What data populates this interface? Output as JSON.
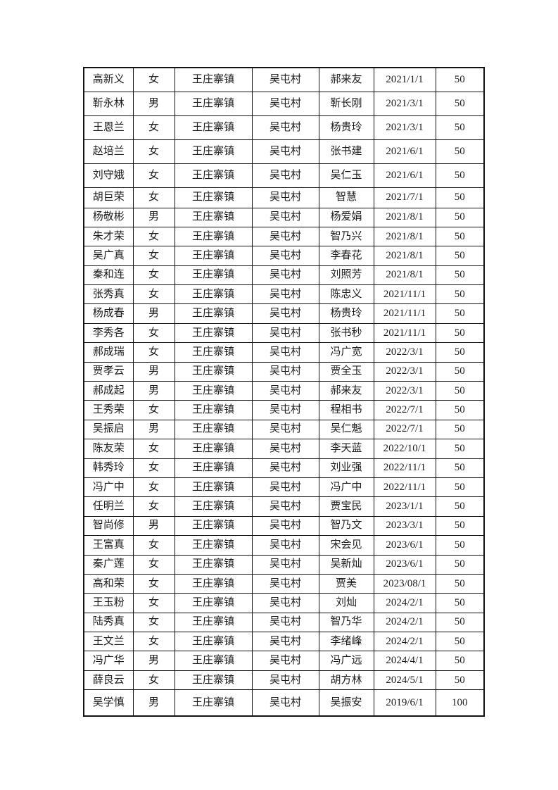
{
  "page": {
    "background_color": "#ffffff",
    "border_color": "#111111",
    "text_color": "#1c1c1c"
  },
  "table": {
    "column_keys": [
      "name",
      "gender",
      "town",
      "village",
      "contact",
      "date",
      "amount"
    ],
    "rows": [
      [
        "高新义",
        "女",
        "王庄寨镇",
        "吴屯村",
        "郝来友",
        "2021/1/1",
        "50"
      ],
      [
        "靳永林",
        "男",
        "王庄寨镇",
        "吴屯村",
        "靳长刚",
        "2021/3/1",
        "50"
      ],
      [
        "王恩兰",
        "女",
        "王庄寨镇",
        "吴屯村",
        "杨贵玲",
        "2021/3/1",
        "50"
      ],
      [
        "赵培兰",
        "女",
        "王庄寨镇",
        "吴屯村",
        "张书建",
        "2021/6/1",
        "50"
      ],
      [
        "刘守娥",
        "女",
        "王庄寨镇",
        "吴屯村",
        "吴仁玉",
        "2021/6/1",
        "50"
      ],
      [
        "胡巨荣",
        "女",
        "王庄寨镇",
        "吴屯村",
        "智慧",
        "2021/7/1",
        "50"
      ],
      [
        "杨敬彬",
        "男",
        "王庄寨镇",
        "吴屯村",
        "杨爱娟",
        "2021/8/1",
        "50"
      ],
      [
        "朱才荣",
        "女",
        "王庄寨镇",
        "吴屯村",
        "智乃兴",
        "2021/8/1",
        "50"
      ],
      [
        "吴广真",
        "女",
        "王庄寨镇",
        "吴屯村",
        "李春花",
        "2021/8/1",
        "50"
      ],
      [
        "秦和连",
        "女",
        "王庄寨镇",
        "吴屯村",
        "刘照芳",
        "2021/8/1",
        "50"
      ],
      [
        "张秀真",
        "女",
        "王庄寨镇",
        "吴屯村",
        "陈忠义",
        "2021/11/1",
        "50"
      ],
      [
        "杨成春",
        "男",
        "王庄寨镇",
        "吴屯村",
        "杨贵玲",
        "2021/11/1",
        "50"
      ],
      [
        "李秀各",
        "女",
        "王庄寨镇",
        "吴屯村",
        "张书秒",
        "2021/11/1",
        "50"
      ],
      [
        "郝成瑞",
        "女",
        "王庄寨镇",
        "吴屯村",
        "冯广宽",
        "2022/3/1",
        "50"
      ],
      [
        "贾孝云",
        "男",
        "王庄寨镇",
        "吴屯村",
        "贾全玉",
        "2022/3/1",
        "50"
      ],
      [
        "郝成起",
        "男",
        "王庄寨镇",
        "吴屯村",
        "郝来友",
        "2022/3/1",
        "50"
      ],
      [
        "王秀荣",
        "女",
        "王庄寨镇",
        "吴屯村",
        "程相书",
        "2022/7/1",
        "50"
      ],
      [
        "吴振启",
        "男",
        "王庄寨镇",
        "吴屯村",
        "吴仁魁",
        "2022/7/1",
        "50"
      ],
      [
        "陈友荣",
        "女",
        "王庄寨镇",
        "吴屯村",
        "李天蓝",
        "2022/10/1",
        "50"
      ],
      [
        "韩秀玲",
        "女",
        "王庄寨镇",
        "吴屯村",
        "刘业强",
        "2022/11/1",
        "50"
      ],
      [
        "冯广中",
        "女",
        "王庄寨镇",
        "吴屯村",
        "冯广中",
        "2022/11/1",
        "50"
      ],
      [
        "任明兰",
        "女",
        "王庄寨镇",
        "吴屯村",
        "贾宝民",
        "2023/1/1",
        "50"
      ],
      [
        "智尚修",
        "男",
        "王庄寨镇",
        "吴屯村",
        "智乃文",
        "2023/3/1",
        "50"
      ],
      [
        "王富真",
        "女",
        "王庄寨镇",
        "吴屯村",
        "宋会见",
        "2023/6/1",
        "50"
      ],
      [
        "秦广莲",
        "女",
        "王庄寨镇",
        "吴屯村",
        "吴新灿",
        "2023/6/1",
        "50"
      ],
      [
        "高和荣",
        "女",
        "王庄寨镇",
        "吴屯村",
        "贾美",
        "2023/08/1",
        "50"
      ],
      [
        "王玉粉",
        "女",
        "王庄寨镇",
        "吴屯村",
        "刘灿",
        "2024/2/1",
        "50"
      ],
      [
        "陆秀真",
        "女",
        "王庄寨镇",
        "吴屯村",
        "智乃华",
        "2024/2/1",
        "50"
      ],
      [
        "王文兰",
        "女",
        "王庄寨镇",
        "吴屯村",
        "李绪峰",
        "2024/2/1",
        "50"
      ],
      [
        "冯广华",
        "男",
        "王庄寨镇",
        "吴屯村",
        "冯广远",
        "2024/4/1",
        "50"
      ],
      [
        "薛良云",
        "女",
        "王庄寨镇",
        "吴屯村",
        "胡方林",
        "2024/5/1",
        "50"
      ],
      [
        "吴学慎",
        "男",
        "王庄寨镇",
        "吴屯村",
        "吴振安",
        "2019/6/1",
        "100"
      ]
    ]
  }
}
